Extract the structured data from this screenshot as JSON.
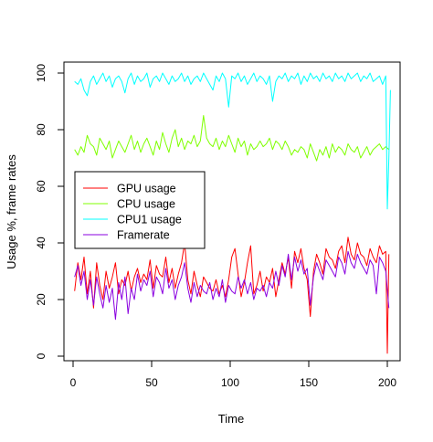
{
  "chart_data": {
    "type": "line",
    "xlabel": "Time",
    "ylabel": "Usage %, frame rates",
    "xlim": [
      0,
      205
    ],
    "ylim": [
      0,
      100
    ],
    "xticks": [
      0,
      50,
      100,
      150,
      200
    ],
    "yticks": [
      0,
      20,
      40,
      60,
      80,
      100
    ],
    "grid": false,
    "legend_position": "middle-left",
    "series": [
      {
        "name": "GPU usage",
        "color": "#ff0000",
        "x": [
          1,
          3,
          5,
          7,
          9,
          11,
          13,
          15,
          17,
          19,
          21,
          23,
          25,
          27,
          29,
          31,
          33,
          35,
          37,
          39,
          41,
          43,
          45,
          47,
          49,
          51,
          53,
          55,
          57,
          59,
          61,
          63,
          65,
          67,
          69,
          71,
          73,
          75,
          77,
          79,
          81,
          83,
          85,
          87,
          89,
          91,
          93,
          95,
          97,
          99,
          101,
          103,
          105,
          107,
          109,
          111,
          113,
          115,
          117,
          119,
          121,
          123,
          125,
          127,
          129,
          131,
          133,
          135,
          137,
          139,
          141,
          143,
          145,
          147,
          149,
          151,
          153,
          155,
          157,
          159,
          161,
          163,
          165,
          167,
          169,
          171,
          173,
          175,
          177,
          179,
          181,
          183,
          185,
          187,
          189,
          191,
          193,
          195,
          197,
          199,
          200,
          201
        ],
        "values": [
          23,
          33,
          27,
          35,
          22,
          30,
          17,
          33,
          25,
          20,
          30,
          24,
          28,
          33,
          22,
          27,
          25,
          30,
          23,
          28,
          31,
          26,
          29,
          27,
          34,
          24,
          32,
          29,
          28,
          35,
          26,
          31,
          24,
          29,
          33,
          40,
          27,
          22,
          30,
          25,
          21,
          28,
          26,
          24,
          23,
          27,
          22,
          25,
          21,
          27,
          35,
          38,
          29,
          21,
          26,
          33,
          39,
          22,
          25,
          30,
          23,
          28,
          26,
          31,
          21,
          27,
          33,
          29,
          35,
          24,
          37,
          33,
          38,
          31,
          27,
          14,
          30,
          36,
          33,
          29,
          38,
          35,
          34,
          31,
          37,
          39,
          33,
          42,
          36,
          34,
          40,
          36,
          35,
          32,
          38,
          35,
          33,
          39,
          36,
          37,
          1,
          36
        ]
      },
      {
        "name": "CPU usage",
        "color": "#7fff00",
        "x": [
          1,
          3,
          5,
          7,
          9,
          11,
          13,
          15,
          17,
          19,
          21,
          23,
          25,
          27,
          29,
          31,
          33,
          35,
          37,
          39,
          41,
          43,
          45,
          47,
          49,
          51,
          53,
          55,
          57,
          59,
          61,
          63,
          65,
          67,
          69,
          71,
          73,
          75,
          77,
          79,
          81,
          83,
          85,
          87,
          89,
          91,
          93,
          95,
          97,
          99,
          101,
          103,
          105,
          107,
          109,
          111,
          113,
          115,
          117,
          119,
          121,
          123,
          125,
          127,
          129,
          131,
          133,
          135,
          137,
          139,
          141,
          143,
          145,
          147,
          149,
          151,
          153,
          155,
          157,
          159,
          161,
          163,
          165,
          167,
          169,
          171,
          173,
          175,
          177,
          179,
          181,
          183,
          185,
          187,
          189,
          191,
          193,
          195,
          197,
          199,
          201
        ],
        "values": [
          73,
          71,
          74,
          72,
          78,
          75,
          74,
          71,
          77,
          75,
          73,
          76,
          70,
          73,
          76,
          74,
          72,
          75,
          78,
          73,
          76,
          72,
          75,
          77,
          74,
          71,
          76,
          73,
          79,
          75,
          72,
          77,
          80,
          74,
          77,
          73,
          76,
          75,
          78,
          74,
          76,
          85,
          77,
          75,
          74,
          77,
          73,
          76,
          74,
          78,
          75,
          72,
          77,
          74,
          76,
          71,
          75,
          73,
          74,
          76,
          74,
          75,
          77,
          73,
          76,
          75,
          73,
          76,
          74,
          71,
          73,
          72,
          74,
          73,
          70,
          75,
          72,
          69,
          73,
          71,
          74,
          70,
          75,
          72,
          74,
          73,
          71,
          75,
          73,
          72,
          74,
          70,
          72,
          74,
          71,
          73,
          74,
          75,
          73,
          74,
          73
        ]
      },
      {
        "name": "CPU1 usage",
        "color": "#00ffff",
        "x": [
          1,
          3,
          5,
          7,
          9,
          11,
          13,
          15,
          17,
          19,
          21,
          23,
          25,
          27,
          29,
          31,
          33,
          35,
          37,
          39,
          41,
          43,
          45,
          47,
          49,
          51,
          53,
          55,
          57,
          59,
          61,
          63,
          65,
          67,
          69,
          71,
          73,
          75,
          77,
          79,
          81,
          83,
          85,
          87,
          89,
          91,
          93,
          95,
          97,
          99,
          101,
          103,
          105,
          107,
          109,
          111,
          113,
          115,
          117,
          119,
          121,
          123,
          125,
          127,
          129,
          131,
          133,
          135,
          137,
          139,
          141,
          143,
          145,
          147,
          149,
          151,
          153,
          155,
          157,
          159,
          161,
          163,
          165,
          167,
          169,
          171,
          173,
          175,
          177,
          179,
          181,
          183,
          185,
          187,
          189,
          191,
          193,
          195,
          197,
          199,
          200,
          201,
          202
        ],
        "values": [
          97,
          96,
          98,
          94,
          92,
          97,
          99,
          96,
          98,
          100,
          97,
          99,
          95,
          98,
          99,
          97,
          93,
          98,
          100,
          96,
          99,
          97,
          98,
          100,
          95,
          98,
          99,
          97,
          100,
          98,
          96,
          99,
          97,
          98,
          100,
          97,
          99,
          96,
          98,
          99,
          97,
          100,
          98,
          96,
          94,
          99,
          97,
          100,
          98,
          88,
          99,
          98,
          100,
          97,
          99,
          96,
          98,
          100,
          97,
          99,
          98,
          96,
          99,
          90,
          97,
          99,
          98,
          100,
          97,
          99,
          98,
          100,
          96,
          99,
          97,
          100,
          98,
          99,
          97,
          100,
          98,
          99,
          97,
          100,
          98,
          99,
          97,
          100,
          98,
          99,
          100,
          97,
          99,
          98,
          100,
          97,
          98,
          99,
          96,
          99,
          52,
          70,
          94
        ]
      },
      {
        "name": "Framerate",
        "color": "#8a00e0",
        "x": [
          1,
          3,
          5,
          7,
          9,
          11,
          13,
          15,
          17,
          19,
          21,
          23,
          25,
          27,
          29,
          31,
          33,
          35,
          37,
          39,
          41,
          43,
          45,
          47,
          49,
          51,
          53,
          55,
          57,
          59,
          61,
          63,
          65,
          67,
          69,
          71,
          73,
          75,
          77,
          79,
          81,
          83,
          85,
          87,
          89,
          91,
          93,
          95,
          97,
          99,
          101,
          103,
          105,
          107,
          109,
          111,
          113,
          115,
          117,
          119,
          121,
          123,
          125,
          127,
          129,
          131,
          133,
          135,
          137,
          139,
          141,
          143,
          145,
          147,
          149,
          151,
          153,
          155,
          157,
          159,
          161,
          163,
          165,
          167,
          169,
          171,
          173,
          175,
          177,
          179,
          181,
          183,
          185,
          187,
          189,
          191,
          193,
          195,
          197,
          199,
          201
        ],
        "values": [
          28,
          32,
          25,
          30,
          20,
          27,
          18,
          28,
          22,
          17,
          25,
          19,
          24,
          13,
          26,
          20,
          28,
          15,
          24,
          20,
          29,
          23,
          27,
          25,
          30,
          21,
          28,
          26,
          22,
          31,
          24,
          27,
          20,
          25,
          28,
          33,
          24,
          19,
          26,
          21,
          25,
          23,
          22,
          26,
          20,
          24,
          21,
          27,
          19,
          25,
          23,
          22,
          28,
          24,
          27,
          22,
          26,
          20,
          24,
          23,
          25,
          21,
          26,
          24,
          30,
          25,
          32,
          28,
          36,
          27,
          35,
          30,
          34,
          29,
          31,
          18,
          28,
          33,
          30,
          27,
          34,
          32,
          30,
          28,
          35,
          33,
          29,
          37,
          33,
          31,
          36,
          33,
          31,
          29,
          34,
          32,
          22,
          35,
          33,
          30,
          17
        ]
      }
    ]
  }
}
